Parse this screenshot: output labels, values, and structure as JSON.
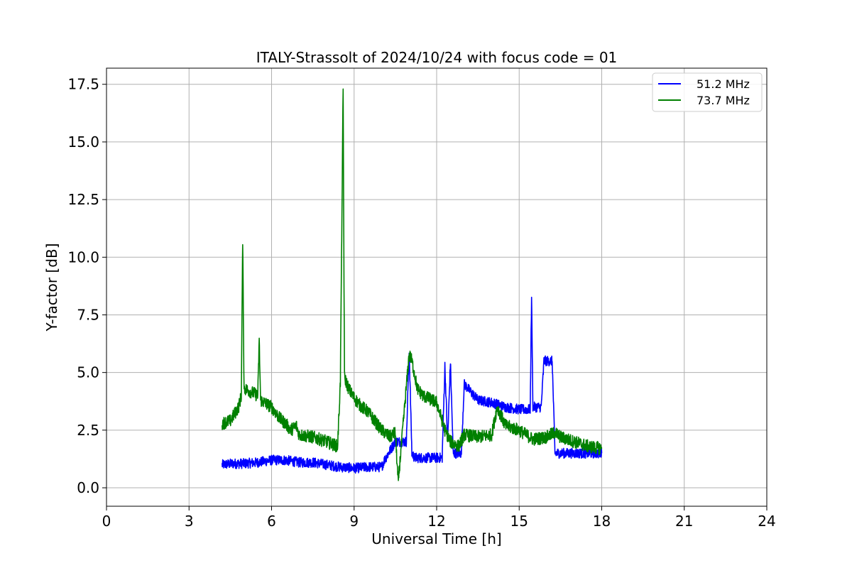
{
  "chart_data": {
    "type": "line",
    "title": "ITALY-Strassolt of 2024/10/24 with focus code = 01",
    "xlabel": "Universal Time [h]",
    "ylabel": "Y-factor [dB]",
    "xlim": [
      0,
      24
    ],
    "ylim": [
      -0.8,
      18.2
    ],
    "xticks": [
      "0",
      "3",
      "6",
      "9",
      "12",
      "15",
      "18",
      "21",
      "24"
    ],
    "yticks": [
      "0.0",
      "2.5",
      "5.0",
      "7.5",
      "10.0",
      "12.5",
      "15.0",
      "17.5"
    ],
    "grid": true,
    "legend_position": "top-right",
    "series": [
      {
        "name": "51.2 MHz",
        "color": "#0000ff",
        "x": [
          4.2,
          4.6,
          5.0,
          5.5,
          6.0,
          6.5,
          7.0,
          7.5,
          8.0,
          8.5,
          9.0,
          9.5,
          10.0,
          10.1,
          10.3,
          10.5,
          10.8,
          10.9,
          11.0,
          11.1,
          11.2,
          11.5,
          12.0,
          12.2,
          12.3,
          12.4,
          12.5,
          12.6,
          12.9,
          13.0,
          13.5,
          14.0,
          14.5,
          15.0,
          15.4,
          15.45,
          15.5,
          15.8,
          15.9,
          16.0,
          16.2,
          16.3,
          16.5,
          17.0,
          17.5,
          18.0
        ],
        "y": [
          1.0,
          1.05,
          1.05,
          1.1,
          1.2,
          1.2,
          1.1,
          1.1,
          1.0,
          0.9,
          0.85,
          0.9,
          0.9,
          1.2,
          1.6,
          2.0,
          2.0,
          2.0,
          6.0,
          1.5,
          1.3,
          1.3,
          1.3,
          1.3,
          5.3,
          2.0,
          5.5,
          1.5,
          1.5,
          4.5,
          3.8,
          3.7,
          3.5,
          3.4,
          3.4,
          8.3,
          3.5,
          3.5,
          5.5,
          5.5,
          5.5,
          1.5,
          1.5,
          1.5,
          1.5,
          1.5
        ]
      },
      {
        "name": "73.7 MHz",
        "color": "#008000",
        "x": [
          4.2,
          4.5,
          4.8,
          4.9,
          4.95,
          5.0,
          5.2,
          5.5,
          5.55,
          5.6,
          6.0,
          6.3,
          6.5,
          6.7,
          6.9,
          7.0,
          7.5,
          8.0,
          8.4,
          8.5,
          8.6,
          8.65,
          8.8,
          9.0,
          9.2,
          9.5,
          10.0,
          10.3,
          10.5,
          10.6,
          11.0,
          11.1,
          11.3,
          11.5,
          12.0,
          12.3,
          12.5,
          12.8,
          13.0,
          13.5,
          14.0,
          14.2,
          14.5,
          15.0,
          15.5,
          16.0,
          16.3,
          16.5,
          17.0,
          17.5,
          18.0
        ],
        "y": [
          2.8,
          2.9,
          3.5,
          4.0,
          10.8,
          4.3,
          4.2,
          4.0,
          6.4,
          3.8,
          3.5,
          3.0,
          2.8,
          2.5,
          2.7,
          2.3,
          2.2,
          2.0,
          1.8,
          4.6,
          17.3,
          4.8,
          4.3,
          3.9,
          3.6,
          3.3,
          2.5,
          2.2,
          2.4,
          0.2,
          5.8,
          5.5,
          4.3,
          4.0,
          3.7,
          2.5,
          2.0,
          1.8,
          2.3,
          2.2,
          2.3,
          3.5,
          2.7,
          2.5,
          2.1,
          2.2,
          2.4,
          2.2,
          2.0,
          1.8,
          1.7
        ]
      }
    ]
  }
}
